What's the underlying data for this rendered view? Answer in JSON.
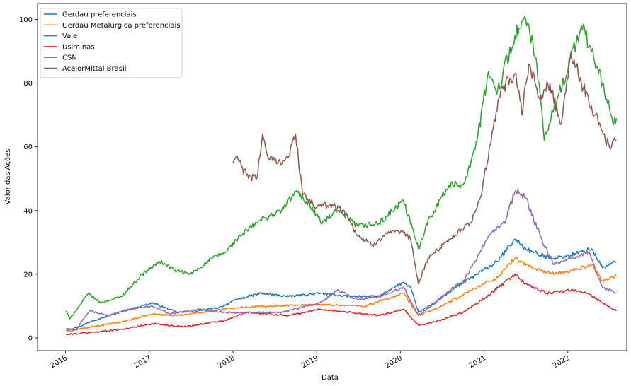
{
  "chart_data": {
    "type": "line",
    "xlabel": "Data",
    "ylabel": "Valor das Ações",
    "x_ticks": [
      "2016",
      "2017",
      "2018",
      "2019",
      "2020",
      "2021",
      "2022"
    ],
    "y_ticks": [
      0,
      20,
      40,
      60,
      80,
      100
    ],
    "xlim": [
      "2015-09-01",
      "2022-09-15"
    ],
    "ylim": [
      -4,
      105
    ],
    "grid": false,
    "legend_position": "upper-left",
    "series": [
      {
        "name": "Gerdau preferenciais",
        "color": "#1f77b4",
        "points": [
          [
            "2016-01-04",
            2.5
          ],
          [
            "2016-03-01",
            3.5
          ],
          [
            "2016-05-01",
            5.5
          ],
          [
            "2016-08-01",
            7.5
          ],
          [
            "2016-11-01",
            9.5
          ],
          [
            "2017-01-15",
            11
          ],
          [
            "2017-05-01",
            8
          ],
          [
            "2017-08-01",
            8.5
          ],
          [
            "2017-11-01",
            9.5
          ],
          [
            "2018-01-15",
            12
          ],
          [
            "2018-05-01",
            14
          ],
          [
            "2018-09-01",
            13
          ],
          [
            "2019-01-15",
            14
          ],
          [
            "2019-06-01",
            13
          ],
          [
            "2019-10-01",
            13
          ],
          [
            "2020-01-15",
            17.5
          ],
          [
            "2020-02-15",
            16
          ],
          [
            "2020-03-20",
            8
          ],
          [
            "2020-06-01",
            11
          ],
          [
            "2020-09-01",
            16
          ],
          [
            "2020-12-01",
            20
          ],
          [
            "2021-03-01",
            24
          ],
          [
            "2021-05-15",
            31
          ],
          [
            "2021-07-01",
            28
          ],
          [
            "2021-09-01",
            26
          ],
          [
            "2021-11-01",
            25
          ],
          [
            "2022-01-15",
            26
          ],
          [
            "2022-04-15",
            28
          ],
          [
            "2022-06-01",
            22
          ],
          [
            "2022-08-01",
            24
          ]
        ]
      },
      {
        "name": "Gerdau Metalúrgica preferenciais",
        "color": "#ff7f0e",
        "points": [
          [
            "2016-01-04",
            2
          ],
          [
            "2016-05-01",
            3.5
          ],
          [
            "2016-09-01",
            5
          ],
          [
            "2017-01-15",
            7.5
          ],
          [
            "2017-05-01",
            7
          ],
          [
            "2017-10-01",
            8.5
          ],
          [
            "2018-01-15",
            9.5
          ],
          [
            "2018-06-01",
            10
          ],
          [
            "2019-01-15",
            10.5
          ],
          [
            "2019-08-01",
            10
          ],
          [
            "2020-01-15",
            14
          ],
          [
            "2020-03-20",
            7
          ],
          [
            "2020-07-01",
            10
          ],
          [
            "2020-12-01",
            16
          ],
          [
            "2021-03-01",
            19
          ],
          [
            "2021-05-15",
            25
          ],
          [
            "2021-08-01",
            22
          ],
          [
            "2021-11-01",
            20
          ],
          [
            "2022-01-15",
            21
          ],
          [
            "2022-04-15",
            23
          ],
          [
            "2022-06-01",
            18
          ],
          [
            "2022-08-01",
            19.5
          ]
        ]
      },
      {
        "name": "Vale",
        "color": "#2ca02c",
        "points": [
          [
            "2016-01-04",
            8.5
          ],
          [
            "2016-01-20",
            6
          ],
          [
            "2016-03-01",
            10
          ],
          [
            "2016-04-10",
            14
          ],
          [
            "2016-06-01",
            11
          ],
          [
            "2016-09-01",
            13
          ],
          [
            "2016-12-01",
            20
          ],
          [
            "2017-02-15",
            24
          ],
          [
            "2017-05-01",
            21
          ],
          [
            "2017-07-01",
            20
          ],
          [
            "2017-10-01",
            25
          ],
          [
            "2017-12-01",
            27
          ],
          [
            "2018-02-01",
            32
          ],
          [
            "2018-05-01",
            37
          ],
          [
            "2018-08-01",
            40
          ],
          [
            "2018-10-01",
            46
          ],
          [
            "2018-12-01",
            42
          ],
          [
            "2019-01-25",
            36
          ],
          [
            "2019-04-01",
            40
          ],
          [
            "2019-07-01",
            35
          ],
          [
            "2019-10-01",
            36
          ],
          [
            "2020-01-15",
            43
          ],
          [
            "2020-03-20",
            28
          ],
          [
            "2020-05-01",
            37
          ],
          [
            "2020-08-01",
            48
          ],
          [
            "2020-10-01",
            48
          ],
          [
            "2020-12-01",
            62
          ],
          [
            "2021-01-15",
            82
          ],
          [
            "2021-03-01",
            78
          ],
          [
            "2021-05-15",
            95
          ],
          [
            "2021-07-01",
            100
          ],
          [
            "2021-08-15",
            88
          ],
          [
            "2021-09-20",
            62
          ],
          [
            "2021-11-01",
            72
          ],
          [
            "2022-01-15",
            88
          ],
          [
            "2022-03-01",
            98
          ],
          [
            "2022-04-15",
            90
          ],
          [
            "2022-06-01",
            80
          ],
          [
            "2022-07-20",
            67
          ],
          [
            "2022-08-01",
            69
          ]
        ]
      },
      {
        "name": "Usiminas",
        "color": "#d62728",
        "points": [
          [
            "2016-01-04",
            1
          ],
          [
            "2016-06-01",
            2
          ],
          [
            "2016-10-01",
            3
          ],
          [
            "2017-01-15",
            4.5
          ],
          [
            "2017-06-01",
            3.5
          ],
          [
            "2017-12-01",
            5.5
          ],
          [
            "2018-03-01",
            8
          ],
          [
            "2018-09-01",
            7
          ],
          [
            "2019-01-15",
            9
          ],
          [
            "2019-06-01",
            8
          ],
          [
            "2019-10-01",
            7
          ],
          [
            "2020-01-15",
            9
          ],
          [
            "2020-03-20",
            4
          ],
          [
            "2020-06-01",
            5
          ],
          [
            "2020-10-01",
            8
          ],
          [
            "2021-01-15",
            13
          ],
          [
            "2021-05-15",
            20
          ],
          [
            "2021-07-01",
            17
          ],
          [
            "2021-10-01",
            14
          ],
          [
            "2022-01-15",
            15
          ],
          [
            "2022-04-01",
            14
          ],
          [
            "2022-06-01",
            11
          ],
          [
            "2022-08-01",
            8.5
          ]
        ]
      },
      {
        "name": "CSN",
        "color": "#9467bd",
        "points": [
          [
            "2016-01-04",
            3
          ],
          [
            "2016-02-15",
            2.5
          ],
          [
            "2016-04-15",
            8.5
          ],
          [
            "2016-07-01",
            7
          ],
          [
            "2016-10-01",
            9
          ],
          [
            "2017-01-15",
            10
          ],
          [
            "2017-04-01",
            7.5
          ],
          [
            "2017-08-01",
            9
          ],
          [
            "2017-12-01",
            8
          ],
          [
            "2018-03-01",
            8
          ],
          [
            "2018-08-01",
            8
          ],
          [
            "2019-01-15",
            11
          ],
          [
            "2019-04-01",
            15
          ],
          [
            "2019-07-01",
            12
          ],
          [
            "2019-10-01",
            13
          ],
          [
            "2020-01-15",
            16
          ],
          [
            "2020-03-20",
            7
          ],
          [
            "2020-07-01",
            13
          ],
          [
            "2020-10-01",
            18
          ],
          [
            "2020-12-01",
            25
          ],
          [
            "2021-02-01",
            33
          ],
          [
            "2021-04-01",
            36
          ],
          [
            "2021-05-15",
            46
          ],
          [
            "2021-07-01",
            44
          ],
          [
            "2021-09-01",
            32
          ],
          [
            "2021-11-01",
            23
          ],
          [
            "2022-01-15",
            25
          ],
          [
            "2022-04-01",
            27
          ],
          [
            "2022-06-01",
            16
          ],
          [
            "2022-08-01",
            14
          ]
        ]
      },
      {
        "name": "AcelorMittal Brasil",
        "color": "#8c564b",
        "points": [
          [
            "2018-01-01",
            55
          ],
          [
            "2018-01-15",
            57
          ],
          [
            "2018-03-01",
            51
          ],
          [
            "2018-04-15",
            50
          ],
          [
            "2018-05-10",
            64
          ],
          [
            "2018-06-01",
            57
          ],
          [
            "2018-07-15",
            55
          ],
          [
            "2018-09-01",
            57
          ],
          [
            "2018-10-01",
            64
          ],
          [
            "2018-11-01",
            45
          ],
          [
            "2019-01-01",
            41
          ],
          [
            "2019-03-01",
            42
          ],
          [
            "2019-05-01",
            40
          ],
          [
            "2019-07-01",
            32
          ],
          [
            "2019-09-01",
            29
          ],
          [
            "2019-11-01",
            33
          ],
          [
            "2020-01-15",
            33
          ],
          [
            "2020-02-15",
            31
          ],
          [
            "2020-03-20",
            17
          ],
          [
            "2020-05-01",
            25
          ],
          [
            "2020-08-01",
            31
          ],
          [
            "2020-11-01",
            36
          ],
          [
            "2020-12-15",
            44
          ],
          [
            "2021-02-01",
            62
          ],
          [
            "2021-03-15",
            78
          ],
          [
            "2021-05-15",
            83
          ],
          [
            "2021-06-15",
            70
          ],
          [
            "2021-07-15",
            86
          ],
          [
            "2021-09-01",
            75
          ],
          [
            "2021-10-15",
            80
          ],
          [
            "2021-12-01",
            67
          ],
          [
            "2022-01-15",
            90
          ],
          [
            "2022-03-01",
            80
          ],
          [
            "2022-05-01",
            70
          ],
          [
            "2022-07-01",
            60
          ],
          [
            "2022-08-01",
            62
          ]
        ]
      }
    ]
  }
}
